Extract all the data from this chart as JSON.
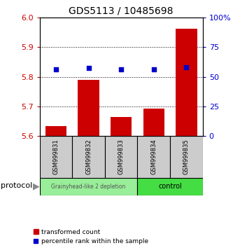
{
  "title": "GDS5113 / 10485698",
  "samples": [
    "GSM999831",
    "GSM999832",
    "GSM999833",
    "GSM999834",
    "GSM999835"
  ],
  "bar_values": [
    5.634,
    5.79,
    5.665,
    5.692,
    5.962
  ],
  "percentile_values": [
    56.0,
    57.5,
    56.0,
    56.0,
    58.0
  ],
  "ylim_left": [
    5.6,
    6.0
  ],
  "ylim_right": [
    0,
    100
  ],
  "yticks_left": [
    5.6,
    5.7,
    5.8,
    5.9,
    6.0
  ],
  "yticks_right": [
    0,
    25,
    50,
    75,
    100
  ],
  "ytick_labels_right": [
    "0",
    "25",
    "50",
    "75",
    "100%"
  ],
  "bar_color": "#cc0000",
  "marker_color": "#0000cc",
  "group1_label": "Grainyhead-like 2 depletion",
  "group1_color": "#99ee99",
  "group1_indices": [
    0,
    1,
    2
  ],
  "group2_label": "control",
  "group2_color": "#44dd44",
  "group2_indices": [
    3,
    4
  ],
  "protocol_label": "protocol",
  "legend_bar_label": "transformed count",
  "legend_marker_label": "percentile rank within the sample",
  "title_fontsize": 10,
  "axis_color_left": "#cc0000",
  "axis_color_right": "#0000cc",
  "bar_width": 0.65,
  "background_color": "#ffffff",
  "sample_box_color": "#cccccc",
  "dotted_lines": [
    5.7,
    5.8,
    5.9
  ]
}
